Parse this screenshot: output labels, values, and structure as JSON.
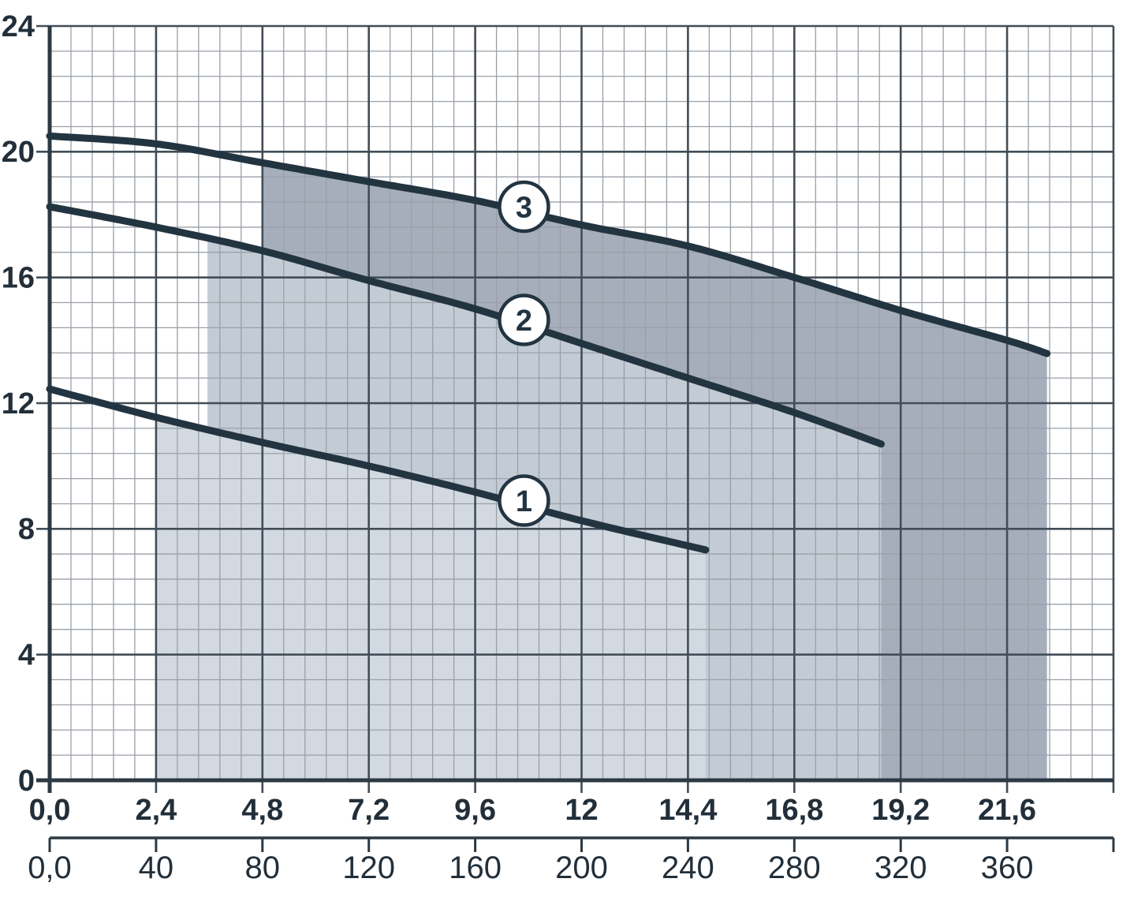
{
  "chart_data": {
    "type": "line",
    "title": "",
    "description": "Pump performance curves: head (m) versus flow, three curves labelled 1, 2 and 3 with stepped shaded operating-range bands",
    "grid": "on",
    "y_axis": {
      "range": [
        0,
        24
      ],
      "major_step": 4,
      "minor_step": 0.8,
      "tick_labels": [
        "24",
        "20",
        "16",
        "12",
        "8",
        "4",
        "0"
      ]
    },
    "x_axis_primary": {
      "range": [
        0,
        24
      ],
      "major_step": 2.4,
      "minor_step": 0.48,
      "tick_labels": [
        "0,0",
        "2,4",
        "4,8",
        "7,2",
        "9,6",
        "12",
        "14,4",
        "16,8",
        "19,2",
        "21,6"
      ]
    },
    "x_axis_secondary": {
      "range": [
        0,
        400
      ],
      "major_step": 40,
      "tick_labels": [
        "0,0",
        "40",
        "80",
        "120",
        "160",
        "200",
        "240",
        "280",
        "320",
        "360"
      ]
    },
    "series": [
      {
        "name": "1",
        "points": [
          [
            0,
            12.45
          ],
          [
            2.4,
            11.55
          ],
          [
            4.8,
            10.75
          ],
          [
            7.2,
            10.0
          ],
          [
            9.6,
            9.17
          ],
          [
            12,
            8.26
          ],
          [
            14.8,
            7.33
          ]
        ],
        "band_start_x": 2.4,
        "marker": {
          "x": 10.7,
          "y": 8.9
        }
      },
      {
        "name": "2",
        "points": [
          [
            0,
            18.25
          ],
          [
            2.4,
            17.6
          ],
          [
            4.8,
            16.85
          ],
          [
            7.2,
            15.9
          ],
          [
            9.6,
            15.0
          ],
          [
            12,
            13.9
          ],
          [
            14.4,
            12.8
          ],
          [
            16.8,
            11.7
          ],
          [
            18.76,
            10.7
          ]
        ],
        "band_start_x": 3.56,
        "marker": {
          "x": 10.7,
          "y": 14.65
        }
      },
      {
        "name": "3",
        "points": [
          [
            0,
            20.5
          ],
          [
            2.4,
            20.25
          ],
          [
            4.8,
            19.65
          ],
          [
            7.2,
            19.05
          ],
          [
            9.6,
            18.45
          ],
          [
            12,
            17.67
          ],
          [
            14.4,
            17.0
          ],
          [
            16.8,
            16.0
          ],
          [
            19.2,
            14.95
          ],
          [
            21.6,
            14.0
          ],
          [
            22.5,
            13.58
          ]
        ],
        "band_start_x": 4.8,
        "marker": {
          "x": 10.7,
          "y": 18.25
        }
      }
    ],
    "band_fill_colors": [
      "#d3d9e0",
      "#c3cbd4",
      "#a6aebb"
    ],
    "colors": {
      "curve": "#233441",
      "grid_major": "#424d57",
      "grid_minor": "#9aa0a8",
      "axis": "#2c3943",
      "label": "#222f3a",
      "marker_fill": "#ffffff",
      "background": "#ffffff"
    },
    "legend_position": "on-curve-circled-numbers"
  }
}
